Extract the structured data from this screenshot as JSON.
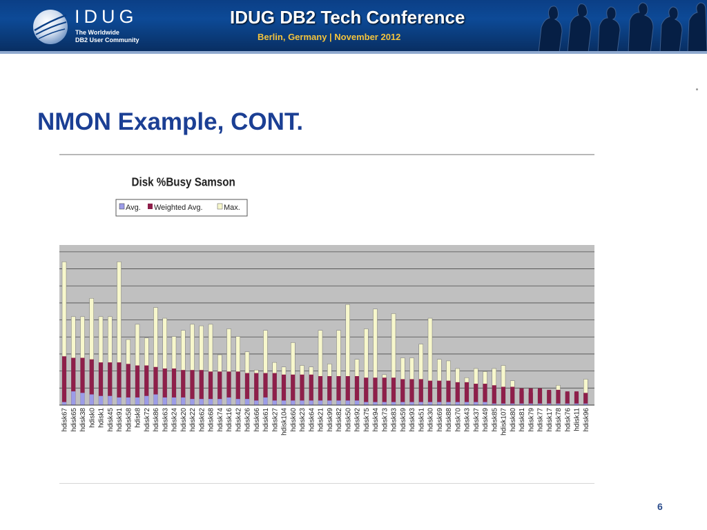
{
  "header": {
    "logo_word": "IDUG",
    "logo_tagline_1": "The Worldwide",
    "logo_tagline_2": "DB2 User Community",
    "conference_title": "IDUG DB2 Tech Conference",
    "conference_subtitle": "Berlin, Germany  |  November 2012"
  },
  "slide": {
    "title": "NMON Example, CONT.",
    "page_number": "6"
  },
  "colors": {
    "avg": "#9c9ce8",
    "weighted_avg": "#8e1f4a",
    "max": "#f7f7cc",
    "plot_bg": "#c0c0c0",
    "title_blue": "#1b3f94"
  },
  "chart_data": {
    "type": "bar",
    "title": "Disk %Busy Samson",
    "legend": [
      "Avg.",
      "Weighted Avg.",
      "Max."
    ],
    "legend_position": "top-left",
    "grid": true,
    "categories": [
      "hdisk67",
      "hdisk65",
      "hdisk38",
      "hdisk0",
      "hdisk1",
      "hdisk45",
      "hdisk91",
      "hdisk58",
      "hdisk8",
      "hdisk72",
      "hdisk86",
      "hdisk63",
      "hdisk24",
      "hdisk20",
      "hdisk22",
      "hdisk62",
      "hdisk68",
      "hdisk74",
      "hdisk16",
      "hdisk42",
      "hdisk26",
      "hdisk66",
      "hdisk61",
      "hdisk27",
      "hdisk104",
      "hdisk60",
      "hdisk23",
      "hdisk64",
      "hdisk21",
      "hdisk99",
      "hdisk82",
      "hdisk50",
      "hdisk92",
      "hdisk75",
      "hdisk94",
      "hdisk73",
      "hdisk83",
      "hdisk59",
      "hdisk93",
      "hdisk51",
      "hdisk30",
      "hdisk69",
      "hdisk88",
      "hdisk70",
      "hdisk43",
      "hdisk37",
      "hdisk49",
      "hdisk85",
      "hdisk107",
      "hdisk80",
      "hdisk81",
      "hdisk79",
      "hdisk77",
      "hdisk17",
      "hdisk78",
      "hdisk76",
      "hdisk11",
      "hdisk96"
    ],
    "series": [
      {
        "name": "Max.",
        "values": [
          94,
          58,
          58,
          70,
          58,
          58,
          94,
          43,
          53,
          44,
          64,
          57,
          45,
          49,
          53,
          52,
          53,
          33,
          50,
          45,
          35,
          23,
          49,
          28,
          25,
          41,
          26,
          25,
          49,
          27,
          49,
          66,
          30,
          50,
          63,
          20,
          60,
          31,
          31,
          40,
          57,
          30,
          29,
          24,
          18,
          24,
          22,
          24,
          26,
          16,
          9,
          8,
          10,
          9,
          13,
          8,
          8,
          17
        ]
      },
      {
        "name": "Weighted Avg.",
        "values": [
          32,
          31,
          31,
          30,
          28,
          28,
          28,
          27,
          26,
          26,
          25,
          24,
          24,
          23,
          23,
          23,
          22,
          22,
          22,
          22,
          21,
          21,
          21,
          21,
          20,
          20,
          20,
          20,
          19,
          19,
          19,
          19,
          19,
          18,
          18,
          18,
          18,
          17,
          17,
          17,
          16,
          16,
          16,
          15,
          15,
          14,
          14,
          13,
          12,
          12,
          11,
          11,
          11,
          10,
          10,
          9,
          9,
          8
        ]
      },
      {
        "name": "Avg.",
        "values": [
          2,
          9,
          8,
          7,
          6,
          6,
          5,
          5,
          5,
          6,
          7,
          5,
          5,
          5,
          4,
          4,
          4,
          4,
          5,
          4,
          4,
          3,
          5,
          3,
          3,
          3,
          3,
          3,
          3,
          3,
          3,
          3,
          3,
          2,
          2,
          2,
          2,
          2,
          2,
          2,
          2,
          2,
          2,
          2,
          2,
          2,
          2,
          1,
          1,
          1,
          1,
          1,
          1,
          1,
          1,
          1,
          1,
          1
        ]
      }
    ]
  }
}
